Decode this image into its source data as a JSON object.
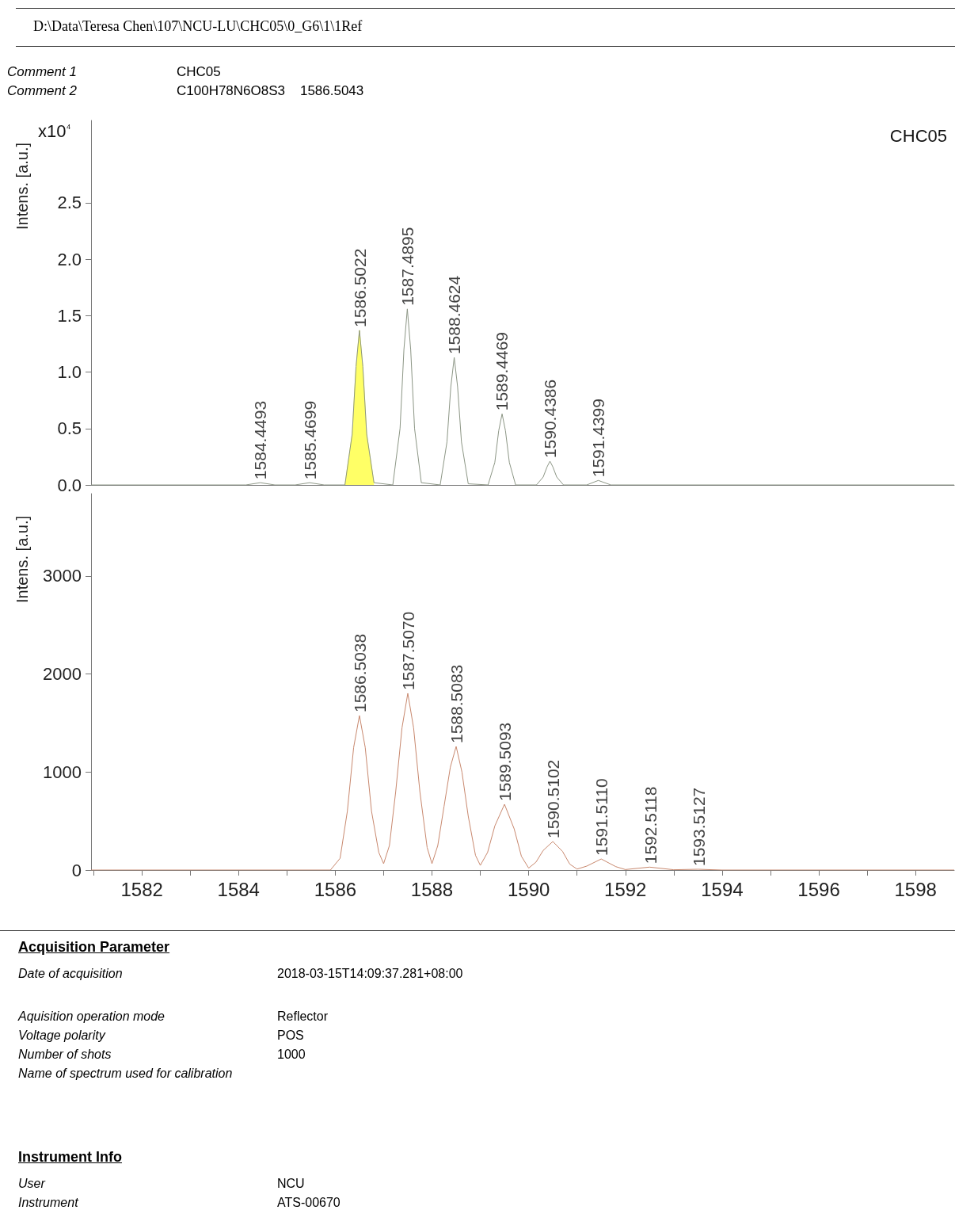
{
  "chart_data": [
    {
      "type": "other",
      "title": "D:\\Data\\Teresa Chen\\107\\NCU-LU\\CHC05\\0_G6\\1\\1Ref",
      "annotations": [
        "Comment 1",
        "CHC05",
        "Comment 2",
        "C100H78N6O8S3    1586.5043"
      ]
    },
    {
      "type": "line",
      "ylabel": "Intens. [a.u.]",
      "xlim": [
        1580.95,
        1598.8
      ],
      "ylim": [
        0,
        3.23
      ],
      "xticks": [
        1582,
        1584,
        1586,
        1588,
        1590,
        1592,
        1594,
        1596,
        1598
      ],
      "yticks": [
        {
          "value": 0,
          "label": "0.0"
        },
        0.5,
        {
          "value": 1,
          "label": "1.0"
        },
        1.5,
        {
          "value": 2,
          "label": "2.0"
        },
        2.5
      ],
      "tick_labels": "y",
      "line_style": "solid",
      "series": [
        {
          "color": "#8c9685",
          "x": [
            1580.95,
            1584.15,
            1584.45,
            1584.75,
            1585.17,
            1585.47,
            1585.77,
            1586.2,
            1586.35,
            1586.43,
            1586.5,
            1586.57,
            1586.65,
            1586.8,
            1587.19,
            1587.34,
            1587.42,
            1587.49,
            1587.56,
            1587.64,
            1587.78,
            1588.17,
            1588.31,
            1588.39,
            1588.46,
            1588.53,
            1588.61,
            1588.75,
            1589.16,
            1589.3,
            1589.38,
            1589.45,
            1589.52,
            1589.6,
            1589.73,
            1590.16,
            1590.3,
            1590.38,
            1590.44,
            1590.5,
            1590.58,
            1590.72,
            1591.2,
            1591.44,
            1591.7,
            1598.8
          ],
          "values": [
            0,
            0,
            0.02,
            0,
            0,
            0.02,
            0,
            0,
            0.45,
            1.05,
            1.37,
            1.05,
            0.45,
            0.02,
            0,
            0.5,
            1.2,
            1.56,
            1.2,
            0.5,
            0.02,
            0,
            0.38,
            0.87,
            1.13,
            0.87,
            0.38,
            0.01,
            0,
            0.2,
            0.48,
            0.63,
            0.48,
            0.2,
            0,
            0,
            0.07,
            0.16,
            0.21,
            0.16,
            0.07,
            0,
            0,
            0.04,
            0,
            0
          ]
        },
        {
          "type": "area",
          "color": "#ffff66",
          "x": [
            1586.2,
            1586.35,
            1586.43,
            1586.5,
            1586.57,
            1586.65,
            1586.8
          ],
          "values": [
            0,
            0.45,
            1.05,
            1.37,
            1.05,
            0.45,
            0.02
          ]
        }
      ],
      "annotations": [
        "x10⁴",
        "CHC05",
        {
          "text": "1584.4493",
          "x": 1584.4493,
          "y": 0.02
        },
        {
          "text": "1585.4699",
          "x": 1585.4699,
          "y": 0.02
        },
        {
          "text": "1586.5022",
          "x": 1586.5022,
          "y": 1.37
        },
        {
          "text": "1587.4895",
          "x": 1587.4895,
          "y": 1.56
        },
        {
          "text": "1588.4624",
          "x": 1588.4624,
          "y": 1.13
        },
        {
          "text": "1589.4469",
          "x": 1589.4469,
          "y": 0.63
        },
        {
          "text": "1590.4386",
          "x": 1590.4386,
          "y": 0.21
        },
        {
          "text": "1591.4399",
          "x": 1591.4399,
          "y": 0.04
        }
      ]
    },
    {
      "type": "line",
      "ylabel": "Intens. [a.u.]",
      "xlim": [
        1580.95,
        1598.8
      ],
      "ylim": [
        0,
        3840
      ],
      "xticks": [
        {
          "value": 1581,
          "label": null
        },
        1582,
        {
          "value": 1583,
          "label": null
        },
        1584,
        {
          "value": 1585,
          "label": null
        },
        1586,
        {
          "value": 1587,
          "label": null
        },
        1588,
        {
          "value": 1589,
          "label": null
        },
        1590,
        {
          "value": 1591,
          "label": null
        },
        1592,
        {
          "value": 1593,
          "label": null
        },
        1594,
        {
          "value": 1595,
          "label": null
        },
        1596,
        {
          "value": 1597,
          "label": null
        },
        1598
      ],
      "yticks": [
        0,
        1000,
        2000,
        3000
      ],
      "line_style": "solid",
      "series": [
        {
          "color": "#c8886e",
          "x": [
            1580.95,
            1585.9,
            1586.1,
            1586.25,
            1586.38,
            1586.5,
            1586.62,
            1586.75,
            1586.9,
            1587.0,
            1587.12,
            1587.25,
            1587.38,
            1587.5,
            1587.62,
            1587.75,
            1587.9,
            1588.0,
            1588.12,
            1588.25,
            1588.38,
            1588.5,
            1588.62,
            1588.75,
            1588.9,
            1589.0,
            1589.15,
            1589.3,
            1589.5,
            1589.7,
            1589.85,
            1590.0,
            1590.15,
            1590.3,
            1590.5,
            1590.7,
            1590.85,
            1591.0,
            1591.2,
            1591.5,
            1591.8,
            1592.0,
            1592.5,
            1593.0,
            1593.5,
            1594.0,
            1598.8
          ],
          "values": [
            0,
            0,
            120,
            600,
            1250,
            1576,
            1250,
            600,
            180,
            65,
            250,
            800,
            1450,
            1803,
            1450,
            800,
            230,
            65,
            250,
            650,
            1050,
            1261,
            1000,
            550,
            150,
            48,
            180,
            450,
            671,
            420,
            140,
            20,
            80,
            200,
            291,
            190,
            60,
            10,
            40,
            113,
            35,
            5,
            30,
            3,
            8,
            0,
            0
          ]
        }
      ],
      "annotations": [
        {
          "text": "1586.5038",
          "x": 1586.5038,
          "y": 1576
        },
        {
          "text": "1587.5070",
          "x": 1587.507,
          "y": 1803
        },
        {
          "text": "1588.5083",
          "x": 1588.5083,
          "y": 1261
        },
        {
          "text": "1589.5093",
          "x": 1589.5093,
          "y": 671
        },
        {
          "text": "1590.5102",
          "x": 1590.5102,
          "y": 291
        },
        {
          "text": "1591.5110",
          "x": 1591.511,
          "y": 113
        },
        {
          "text": "1592.5118",
          "x": 1592.5118,
          "y": 30
        },
        {
          "text": "1593.5127",
          "x": 1593.5127,
          "y": 8
        }
      ]
    },
    {
      "type": "other",
      "title": "Acquisition Parameter",
      "annotations": [
        "Date of acquisition",
        "2018-03-15T14:09:37.281+08:00",
        "Aquisition operation mode",
        "Reflector",
        "Voltage polarity",
        "POS",
        "Number of shots",
        "1000",
        "Name of spectrum used for calibration"
      ]
    },
    {
      "type": "other",
      "title": "Instrument Info",
      "annotations": [
        "User",
        "NCU",
        "Instrument",
        "ATS-00670"
      ]
    }
  ]
}
